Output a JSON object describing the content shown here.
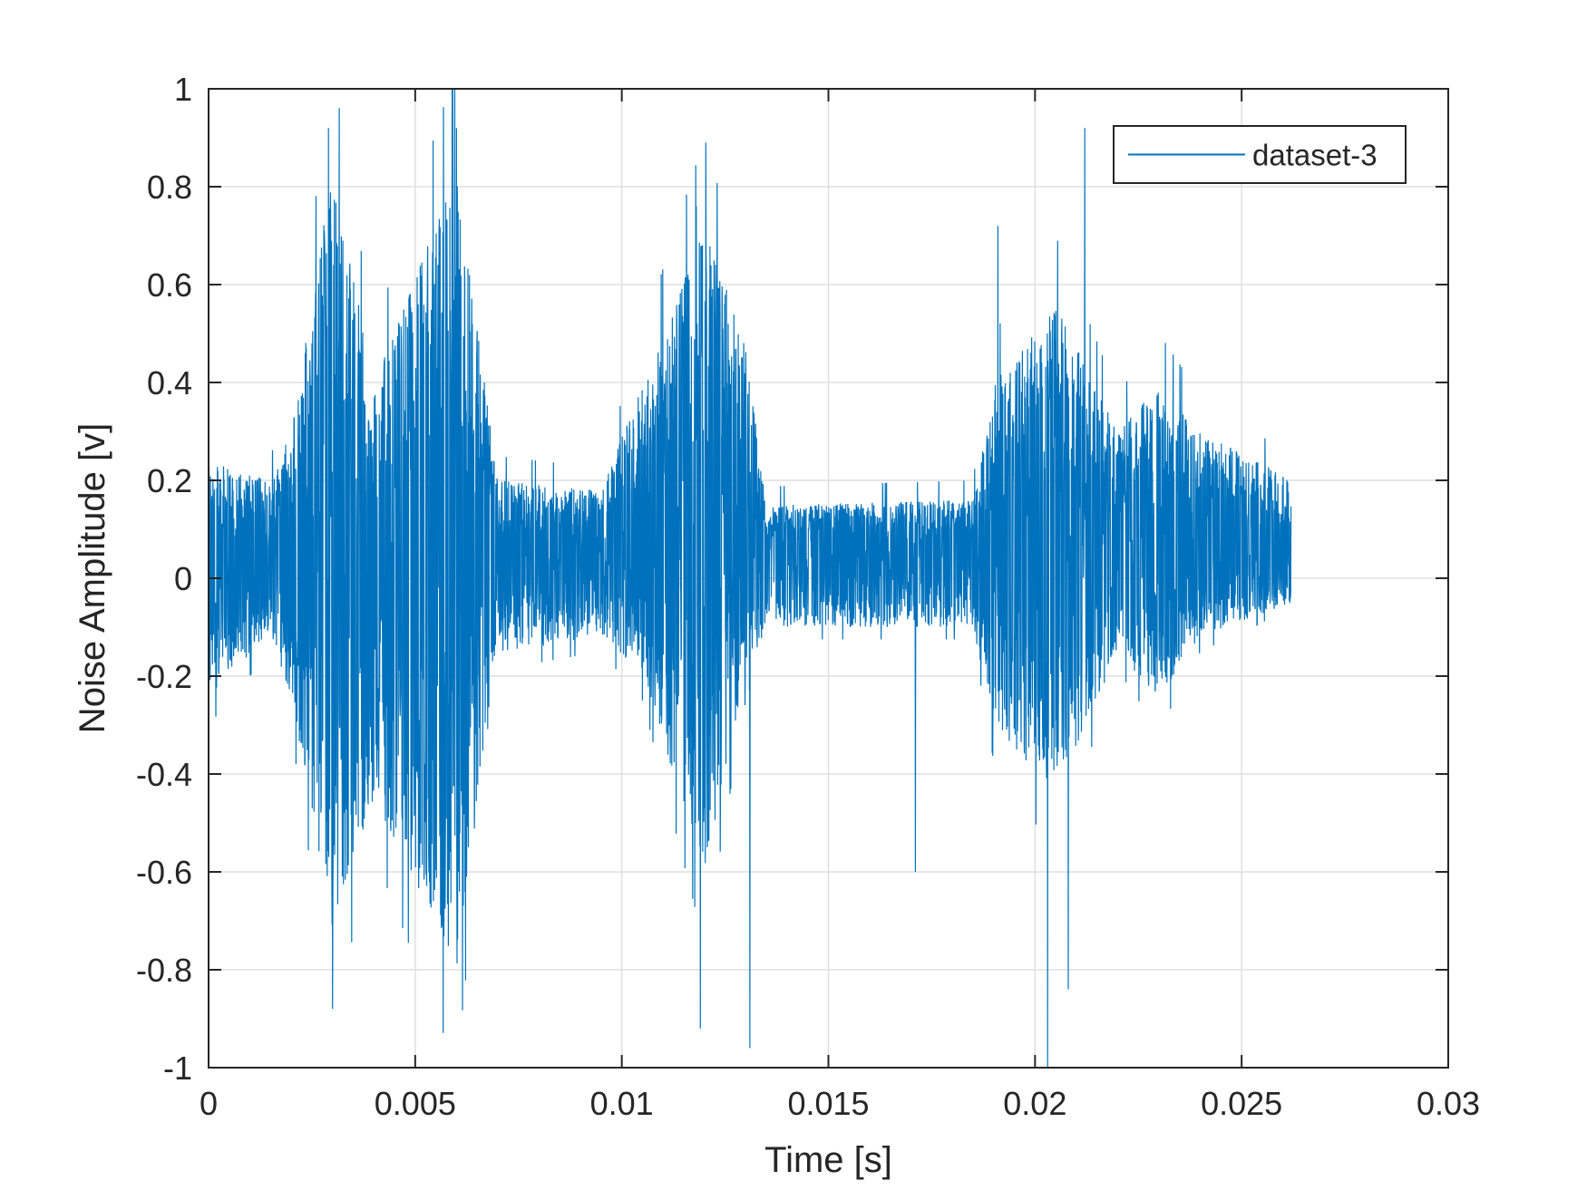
{
  "chart_data": {
    "type": "line",
    "title": "",
    "xlabel": "Time [s]",
    "ylabel": "Noise Amplitude [v]",
    "xlim": [
      0,
      0.03
    ],
    "ylim": [
      -1,
      1
    ],
    "x_ticks": [
      "0",
      "0.005",
      "0.01",
      "0.015",
      "0.02",
      "0.025",
      "0.03"
    ],
    "y_ticks": [
      "1",
      "0.8",
      "0.6",
      "0.4",
      "0.2",
      "0",
      "-0.2",
      "-0.4",
      "-0.6",
      "-0.8",
      "-1"
    ],
    "grid": true,
    "legend": {
      "entries": [
        "dataset-3"
      ],
      "position": "top-right"
    },
    "series": [
      {
        "name": "dataset-3",
        "color": "#0072BD",
        "x_start": 0,
        "x_end": 0.0262,
        "baseline_offset": 0.06,
        "envelope": [
          {
            "x": 0.0,
            "upper": 0.24,
            "lower": -0.24
          },
          {
            "x": 0.0015,
            "upper": 0.2,
            "lower": -0.12
          },
          {
            "x": 0.002,
            "upper": 0.3,
            "lower": -0.25
          },
          {
            "x": 0.003,
            "upper": 0.84,
            "lower": -0.72
          },
          {
            "x": 0.004,
            "upper": 0.4,
            "lower": -0.45
          },
          {
            "x": 0.006,
            "upper": 0.84,
            "lower": -0.8
          },
          {
            "x": 0.007,
            "upper": 0.2,
            "lower": -0.15
          },
          {
            "x": 0.0095,
            "upper": 0.18,
            "lower": -0.12
          },
          {
            "x": 0.0105,
            "upper": 0.4,
            "lower": -0.2
          },
          {
            "x": 0.012,
            "upper": 0.72,
            "lower": -0.6
          },
          {
            "x": 0.013,
            "upper": 0.48,
            "lower": -0.2
          },
          {
            "x": 0.0135,
            "upper": 0.15,
            "lower": -0.1
          },
          {
            "x": 0.0185,
            "upper": 0.16,
            "lower": -0.1
          },
          {
            "x": 0.019,
            "upper": 0.4,
            "lower": -0.3
          },
          {
            "x": 0.0205,
            "upper": 0.56,
            "lower": -0.45
          },
          {
            "x": 0.022,
            "upper": 0.3,
            "lower": -0.15
          },
          {
            "x": 0.023,
            "upper": 0.4,
            "lower": -0.25
          },
          {
            "x": 0.024,
            "upper": 0.3,
            "lower": -0.12
          },
          {
            "x": 0.0262,
            "upper": 0.2,
            "lower": -0.05
          }
        ],
        "notable_peaks": [
          {
            "x": 0.0029,
            "y": 0.92
          },
          {
            "x": 0.003,
            "y": -0.88
          },
          {
            "x": 0.006,
            "y": 0.92
          },
          {
            "x": 0.0118,
            "y": 0.76
          },
          {
            "x": 0.0119,
            "y": -0.92
          },
          {
            "x": 0.0131,
            "y": -0.96
          },
          {
            "x": 0.0191,
            "y": 0.72
          },
          {
            "x": 0.0203,
            "y": -1.0
          },
          {
            "x": 0.0212,
            "y": 0.92
          },
          {
            "x": 0.0208,
            "y": -0.84
          },
          {
            "x": 0.0171,
            "y": -0.6
          }
        ]
      }
    ]
  }
}
